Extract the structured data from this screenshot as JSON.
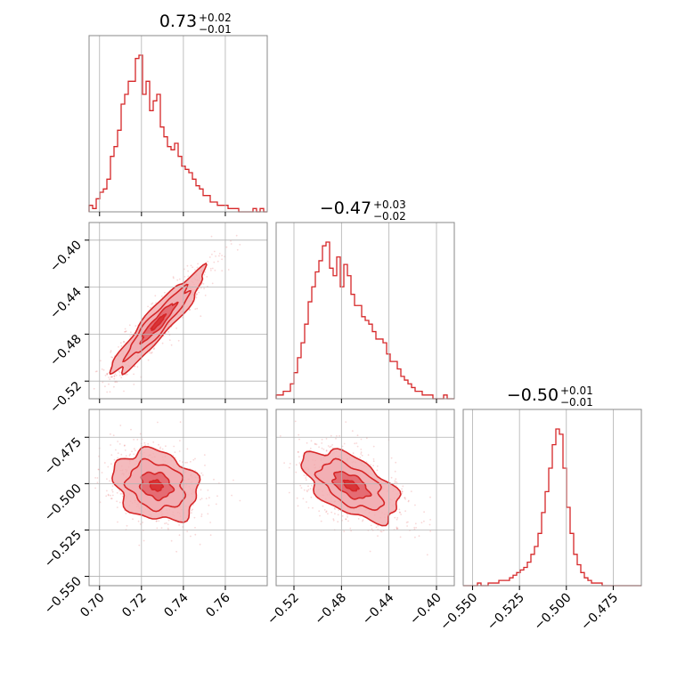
{
  "colors": {
    "accent": "#d62728",
    "fill_dark": "#e0555d",
    "fill_light": "#f2aeb2",
    "grid": "#b0b0b0",
    "frame": "#888888"
  },
  "chart_data": [
    {
      "type": "histogram",
      "panel": "hist-param-1",
      "title_value": "0.73",
      "title_upper": "+0.02",
      "title_lower": "−0.01",
      "xlim": [
        0.695,
        0.78
      ],
      "xticks": [
        "0.70",
        "0.72",
        "0.74",
        "0.76"
      ],
      "xtick_values": [
        0.7,
        0.72,
        0.74,
        0.76
      ],
      "bins": [
        0.695,
        0.78
      ],
      "counts": [
        2,
        1,
        4,
        6,
        7,
        10,
        17,
        20,
        25,
        33,
        36,
        40,
        40,
        47,
        48,
        36,
        40,
        31,
        34,
        36,
        26,
        23,
        20,
        19,
        21,
        17,
        14,
        13,
        12,
        10,
        8,
        7,
        5,
        5,
        3,
        3,
        2,
        2,
        2,
        1,
        1,
        1,
        0,
        0,
        0,
        0,
        1,
        0,
        1,
        0
      ]
    },
    {
      "type": "histogram",
      "panel": "hist-param-2",
      "title_value": "−0.47",
      "title_upper": "+0.03",
      "title_lower": "−0.02",
      "xlim": [
        -0.535,
        -0.385
      ],
      "xticks": [
        "−0.52",
        "−0.48",
        "−0.44",
        "−0.40"
      ],
      "xtick_values": [
        -0.52,
        -0.48,
        -0.44,
        -0.4
      ],
      "bins": [
        -0.535,
        -0.385
      ],
      "counts": [
        1,
        1,
        2,
        2,
        4,
        7,
        11,
        15,
        20,
        26,
        30,
        34,
        37,
        41,
        42,
        35,
        33,
        38,
        30,
        36,
        33,
        28,
        25,
        25,
        22,
        21,
        20,
        18,
        16,
        16,
        15,
        12,
        10,
        10,
        8,
        6,
        5,
        4,
        3,
        2,
        2,
        1,
        1,
        1,
        0,
        0,
        0,
        1,
        0,
        0
      ]
    },
    {
      "type": "histogram",
      "panel": "hist-param-3",
      "title_value": "−0.50",
      "title_upper": "+0.01",
      "title_lower": "−0.01",
      "xlim": [
        -0.555,
        -0.46
      ],
      "xticks": [
        "−0.550",
        "−0.525",
        "−0.500",
        "−0.475"
      ],
      "xtick_values": [
        -0.55,
        -0.525,
        -0.5,
        -0.475
      ],
      "bins": [
        -0.555,
        -0.46
      ],
      "counts": [
        0,
        0,
        0,
        0,
        1,
        0,
        0,
        1,
        1,
        1,
        2,
        2,
        2,
        3,
        4,
        5,
        6,
        7,
        9,
        12,
        15,
        20,
        28,
        36,
        45,
        54,
        60,
        58,
        45,
        30,
        20,
        12,
        8,
        5,
        3,
        2,
        1,
        1,
        1,
        0,
        0,
        0,
        0,
        0,
        0,
        0,
        0,
        0,
        0,
        0
      ]
    },
    {
      "type": "scatter-contour",
      "panel": "corner-2-1",
      "x_param": "param-1",
      "y_param": "param-2",
      "xlim": [
        0.695,
        0.78
      ],
      "ylim": [
        -0.535,
        -0.385
      ],
      "yticks": [
        "−0.40",
        "−0.44",
        "−0.48",
        "−0.52"
      ],
      "ytick_values": [
        -0.4,
        -0.44,
        -0.48,
        -0.52
      ],
      "center": [
        0.728,
        -0.47
      ],
      "sx": 0.011,
      "sy": 0.022,
      "rho": 0.93
    },
    {
      "type": "scatter-contour",
      "panel": "corner-3-1",
      "x_param": "param-1",
      "y_param": "param-3",
      "xlim": [
        0.695,
        0.78
      ],
      "ylim": [
        -0.555,
        -0.46
      ],
      "yticks": [
        "−0.475",
        "−0.500",
        "−0.525",
        "−0.550"
      ],
      "ytick_values": [
        -0.475,
        -0.5,
        -0.525,
        -0.55
      ],
      "center": [
        0.727,
        -0.501
      ],
      "sx": 0.01,
      "sy": 0.0095,
      "rho": -0.2
    },
    {
      "type": "scatter-contour",
      "panel": "corner-3-2",
      "x_param": "param-2",
      "y_param": "param-3",
      "xlim": [
        -0.535,
        -0.385
      ],
      "ylim": [
        -0.555,
        -0.46
      ],
      "center": [
        -0.472,
        -0.501
      ],
      "sx": 0.02,
      "sy": 0.0095,
      "rho": -0.55
    }
  ]
}
